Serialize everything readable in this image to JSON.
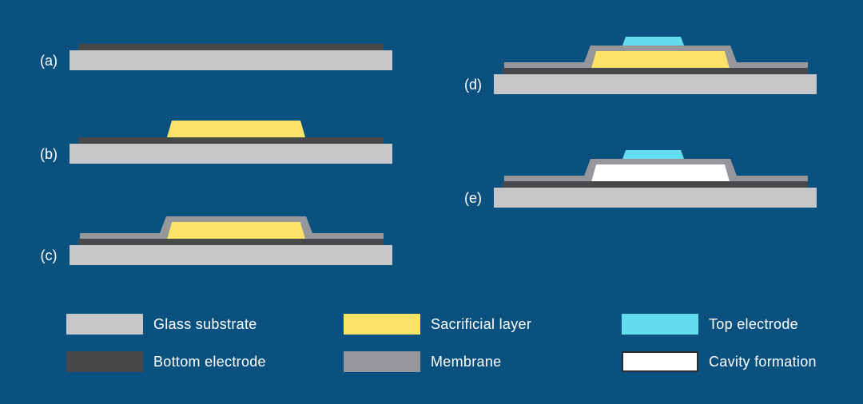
{
  "figure": {
    "description": "Fabrication process cross-section diagram, steps (a) to (e)",
    "colors": {
      "background": "#0A5180",
      "glass_substrate": "#C6C7C9",
      "bottom_electrode": "#474849",
      "sacrificial_layer": "#FBE36A",
      "membrane": "#95979A",
      "top_electrode": "#64DCF0",
      "cavity_formation": "#FFFFFF",
      "cavity_border": "#2B2B2B",
      "text": "#FFFFFF"
    },
    "steps": [
      {
        "id": "a",
        "label": "(a)",
        "layers": [
          "glass_substrate",
          "bottom_electrode"
        ]
      },
      {
        "id": "b",
        "label": "(b)",
        "layers": [
          "glass_substrate",
          "bottom_electrode",
          "sacrificial_layer"
        ]
      },
      {
        "id": "c",
        "label": "(c)",
        "layers": [
          "glass_substrate",
          "bottom_electrode",
          "sacrificial_layer",
          "membrane"
        ]
      },
      {
        "id": "d",
        "label": "(d)",
        "layers": [
          "glass_substrate",
          "bottom_electrode",
          "sacrificial_layer",
          "membrane",
          "top_electrode"
        ]
      },
      {
        "id": "e",
        "label": "(e)",
        "layers": [
          "glass_substrate",
          "bottom_electrode",
          "cavity_formation",
          "membrane",
          "top_electrode"
        ]
      }
    ]
  },
  "legend": {
    "items": [
      {
        "key": "glass_substrate",
        "label": "Glass substrate"
      },
      {
        "key": "bottom_electrode",
        "label": "Bottom electrode"
      },
      {
        "key": "sacrificial_layer",
        "label": "Sacrificial layer"
      },
      {
        "key": "membrane",
        "label": "Membrane"
      },
      {
        "key": "top_electrode",
        "label": "Top electrode"
      },
      {
        "key": "cavity_formation",
        "label": "Cavity formation"
      }
    ]
  }
}
